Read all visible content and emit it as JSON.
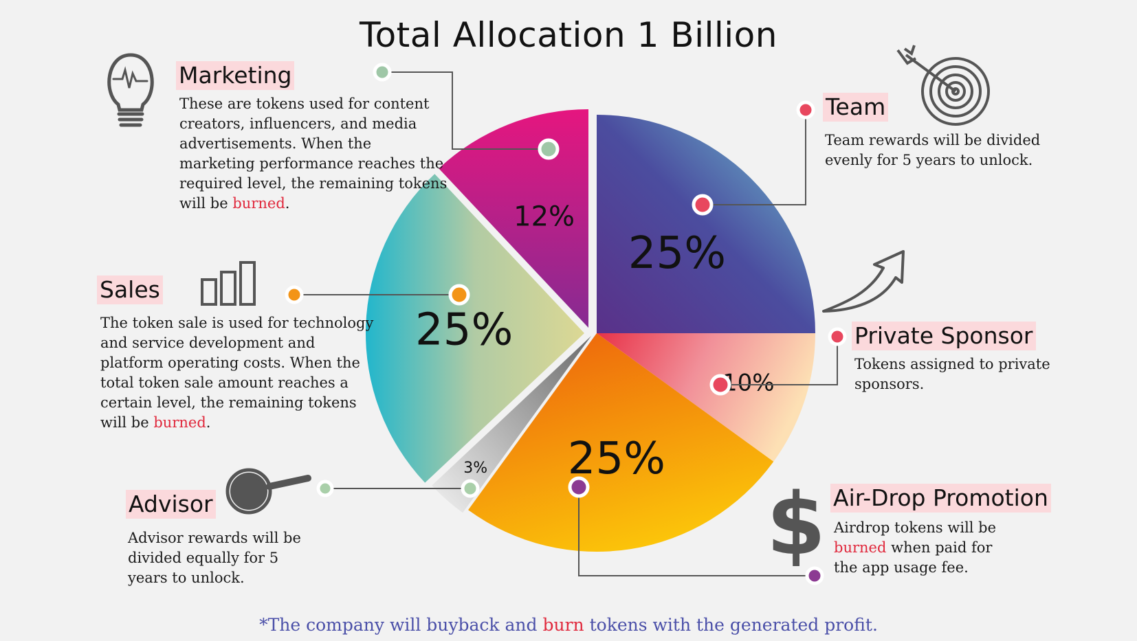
{
  "title": "Total Allocation 1 Billion",
  "chart_data": {
    "type": "pie",
    "title": "Total Allocation 1 Billion",
    "slices": [
      {
        "label": "Team",
        "value": 25,
        "display": "25%"
      },
      {
        "label": "Private Sponsor",
        "value": 10,
        "display": "10%"
      },
      {
        "label": "Air-Drop Promotion",
        "value": 25,
        "display": "25%"
      },
      {
        "label": "Advisor",
        "value": 3,
        "display": "3%"
      },
      {
        "label": "Sales",
        "value": 25,
        "display": "25%"
      },
      {
        "label": "Marketing",
        "value": 12,
        "display": "12%"
      }
    ]
  },
  "marketing": {
    "title": "Marketing",
    "desc": "These are tokens used for content creators, influencers, and media advertisements. When the marketing performance reaches the required level, the remaining tokens will be",
    "burn": "burned",
    "end": "."
  },
  "team": {
    "title": "Team",
    "desc": "Team rewards will be divided evenly for 5 years to unlock."
  },
  "sales": {
    "title": "Sales",
    "desc": "The token sale is used for technology and service development and platform operating costs. When the total token sale amount reaches a certain level, the remaining tokens will be",
    "burn": "burned",
    "end": "."
  },
  "private_sponsor": {
    "title": "Private Sponsor",
    "desc": "Tokens assigned to private sponsors."
  },
  "advisor": {
    "title": "Advisor",
    "desc": "Advisor rewards will be divided equally for 5 years to unlock."
  },
  "airdrop": {
    "title": "Air-Drop Promotion",
    "desc_before": "Airdrop tokens will be",
    "burn": "burned",
    "desc_after": "when paid for the app usage fee."
  },
  "footer": {
    "before": "*The company will buyback and",
    "burn": "burn",
    "after": "tokens with the generated profit."
  },
  "colors": {
    "team": [
      "#6ec3d4",
      "#4a4ba0",
      "#5e3590"
    ],
    "private_sponsor": [
      "#e8334a",
      "#fcd9b0"
    ],
    "airdrop": [
      "#ee6a0c",
      "#fcc40a"
    ],
    "advisor": [
      "#8a8a8a",
      "#e6e6e6"
    ],
    "sales": [
      "#26b9cd",
      "#d4d79a"
    ],
    "marketing": [
      "#e6167e",
      "#8a2a92"
    ],
    "accent_red": "#e0283c",
    "footer_blue": "#4a4fa8"
  },
  "icons": [
    "light-bulb-icon",
    "target-arrow-icon",
    "bar-chart-icon",
    "trend-arrow-icon",
    "magnifier-icon",
    "dollar-icon"
  ]
}
